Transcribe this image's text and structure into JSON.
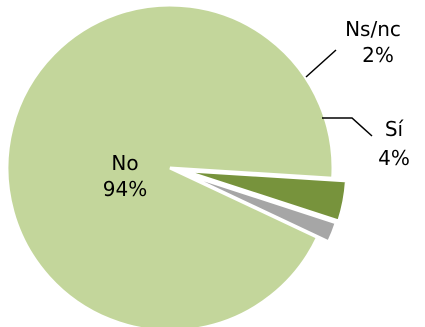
{
  "chart_data": {
    "type": "pie",
    "slices": [
      {
        "label": "No",
        "value": 94,
        "value_label": "94%",
        "color": "#c3d69b"
      },
      {
        "label": "Ns/nc",
        "value": 2,
        "value_label": "2%",
        "color": "#a6a6a6"
      },
      {
        "label": "Sí",
        "value": 4,
        "value_label": "4%",
        "color": "#77933c"
      }
    ],
    "legend": "none"
  }
}
